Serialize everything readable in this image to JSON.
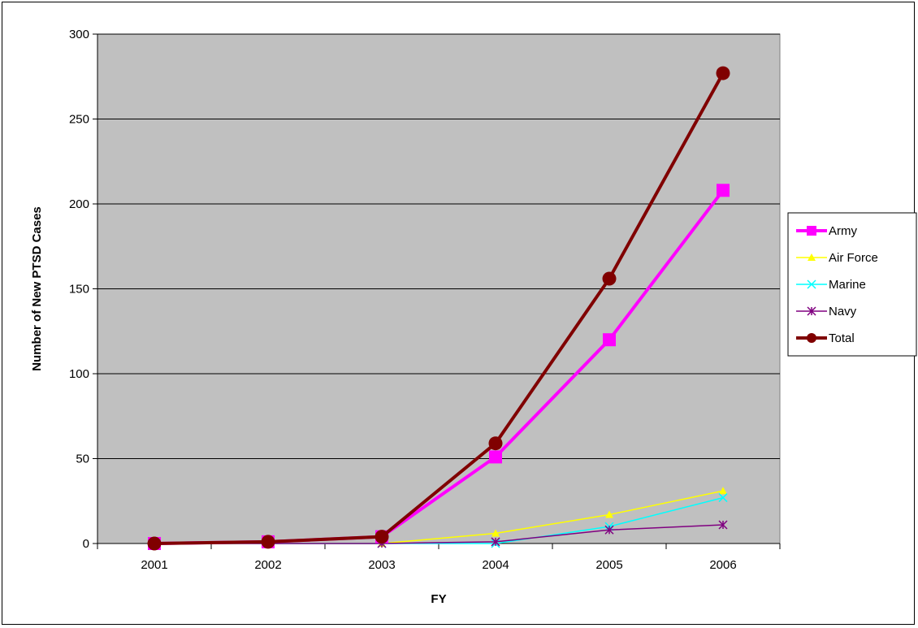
{
  "chart_data": {
    "type": "line",
    "title": "",
    "xlabel": "FY",
    "ylabel": "Number of New PTSD Cases",
    "categories": [
      "2001",
      "2002",
      "2003",
      "2004",
      "2005",
      "2006"
    ],
    "ylim": [
      0,
      300
    ],
    "yticks": [
      0,
      50,
      100,
      150,
      200,
      250,
      300
    ],
    "grid": true,
    "plot_background": "#c0c0c0",
    "legend_position": "right",
    "series": [
      {
        "name": "Army",
        "values": [
          0,
          1,
          4,
          51,
          120,
          208
        ],
        "color": "#ff00ff",
        "marker": "square",
        "line": "thick"
      },
      {
        "name": "Air Force",
        "values": [
          0,
          0,
          0,
          6,
          17,
          31
        ],
        "color": "#ffff00",
        "marker": "triangle",
        "line": "thin"
      },
      {
        "name": "Marine",
        "values": [
          0,
          0,
          0,
          0,
          10,
          27
        ],
        "color": "#00ffff",
        "marker": "x",
        "line": "thin"
      },
      {
        "name": "Navy",
        "values": [
          0,
          0,
          0,
          1,
          8,
          11
        ],
        "color": "#800080",
        "marker": "asterisk",
        "line": "thin"
      },
      {
        "name": "Total",
        "values": [
          0,
          1,
          4,
          59,
          156,
          277
        ],
        "color": "#800000",
        "marker": "circle",
        "line": "thick"
      }
    ]
  }
}
